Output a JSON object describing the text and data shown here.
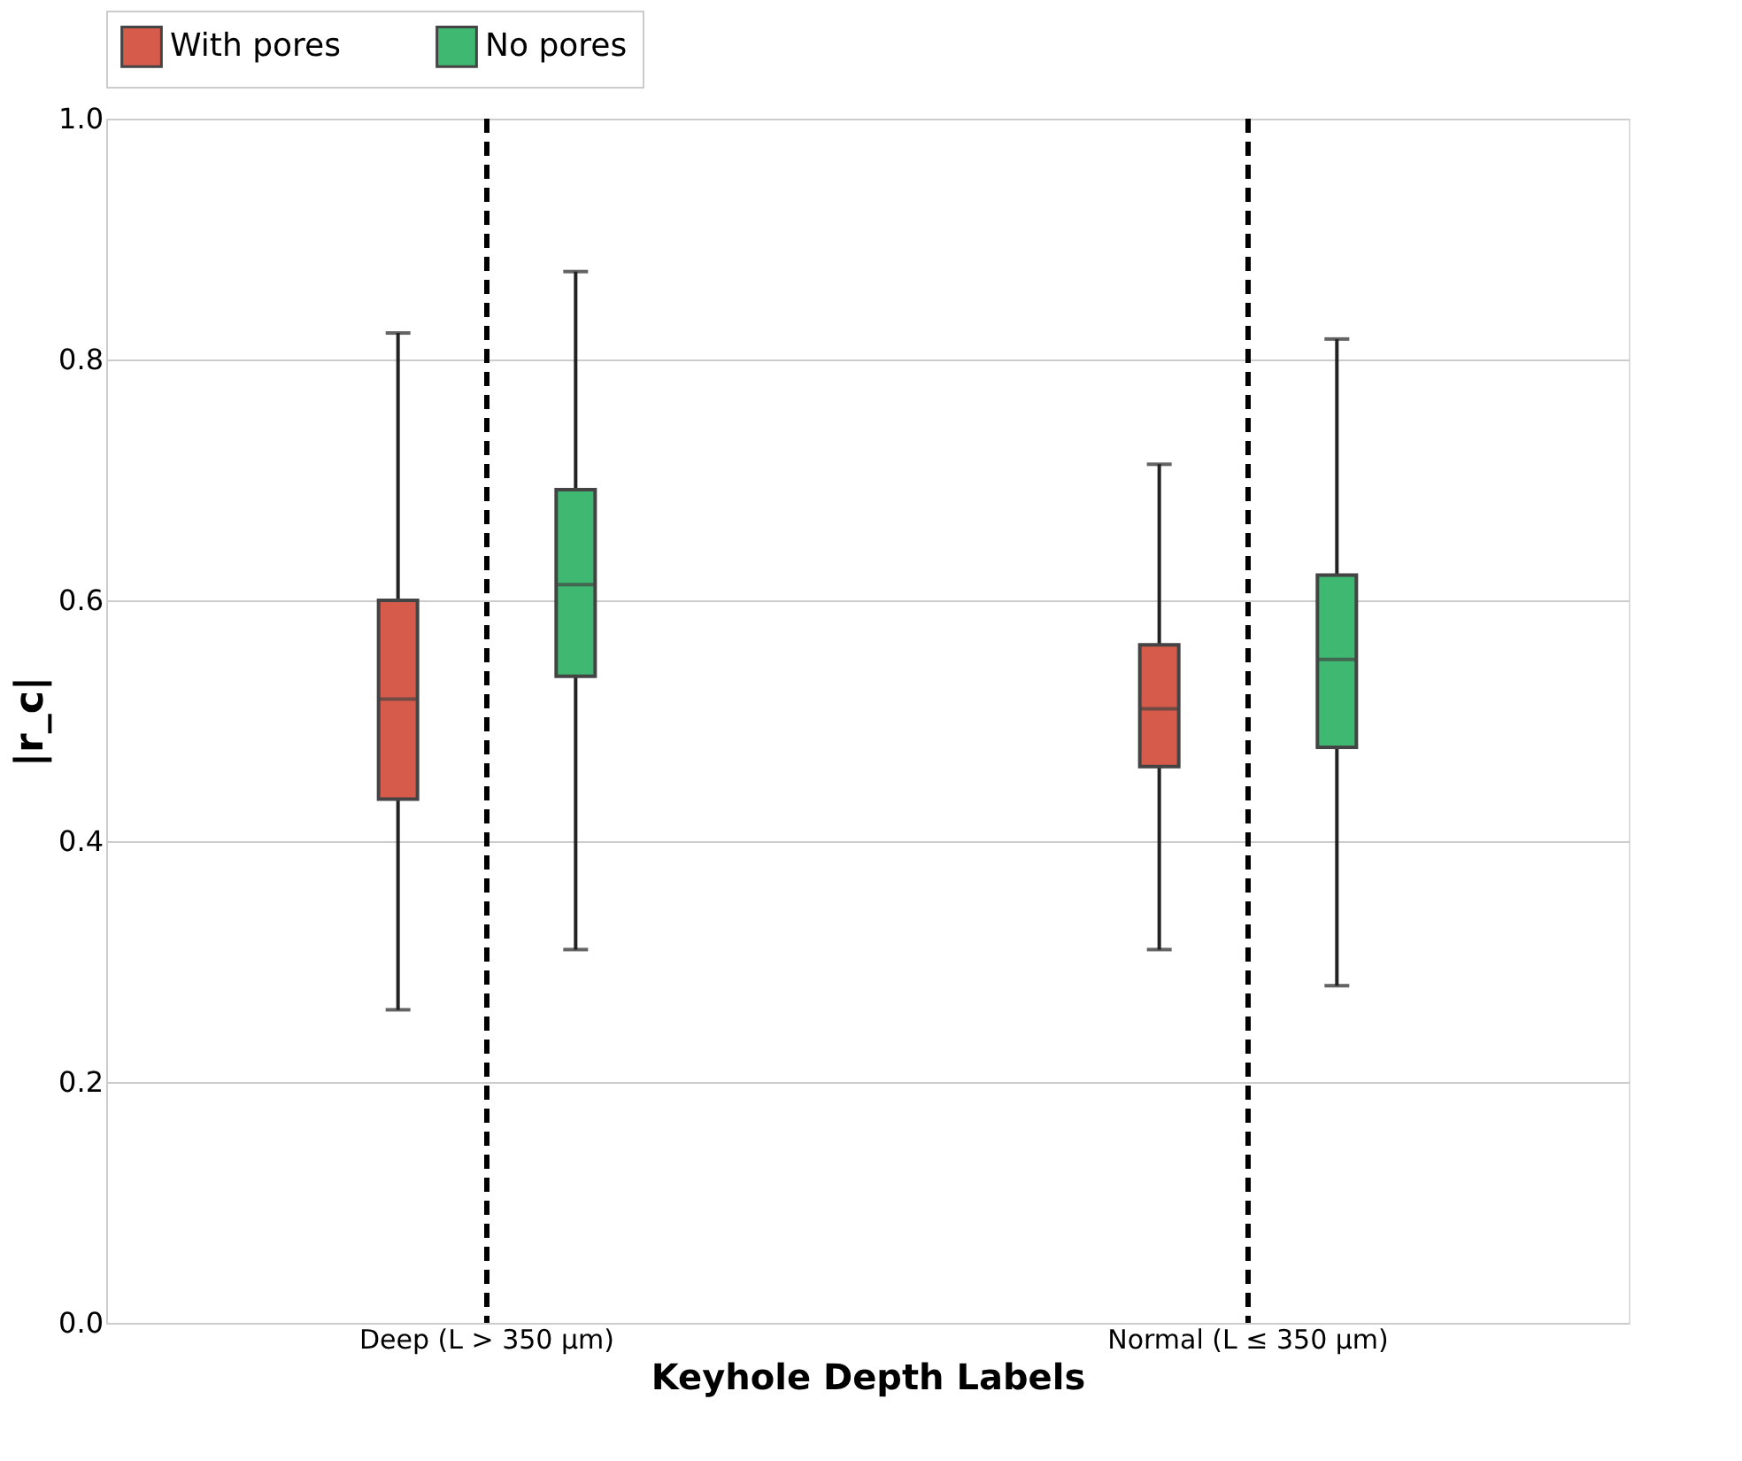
{
  "chart_data": {
    "type": "box",
    "xlabel": "Keyhole Depth Labels",
    "ylabel": "|r_c|",
    "categories": [
      "Deep (L > 350 μm)",
      "Normal (L ≤ 350 μm)"
    ],
    "series": [
      {
        "name": "With pores",
        "color": "#d65b4b",
        "boxes": [
          {
            "low": 0.26,
            "q1": 0.435,
            "median": 0.518,
            "q3": 0.6,
            "high": 0.822
          },
          {
            "low": 0.31,
            "q1": 0.462,
            "median": 0.51,
            "q3": 0.563,
            "high": 0.713
          }
        ]
      },
      {
        "name": "No pores",
        "color": "#3fb871",
        "boxes": [
          {
            "low": 0.31,
            "q1": 0.537,
            "median": 0.613,
            "q3": 0.692,
            "high": 0.873
          },
          {
            "low": 0.28,
            "q1": 0.478,
            "median": 0.551,
            "q3": 0.621,
            "high": 0.817
          }
        ]
      }
    ],
    "ylim": [
      0,
      1
    ],
    "yticks": [
      {
        "value": 0,
        "label": "0.0"
      },
      0.2,
      0.4,
      0.6,
      0.8,
      {
        "value": 1,
        "label": "1.0"
      }
    ],
    "grid": "y",
    "legend": "top",
    "ref_lines": [
      {
        "axis": "x",
        "value": "Deep (L > 350 μm)",
        "color": "#000000",
        "line_style": "dashed"
      },
      {
        "axis": "x",
        "value": "Normal (L ≤ 350 μm)",
        "color": "#000000",
        "line_style": "dashed"
      }
    ]
  }
}
